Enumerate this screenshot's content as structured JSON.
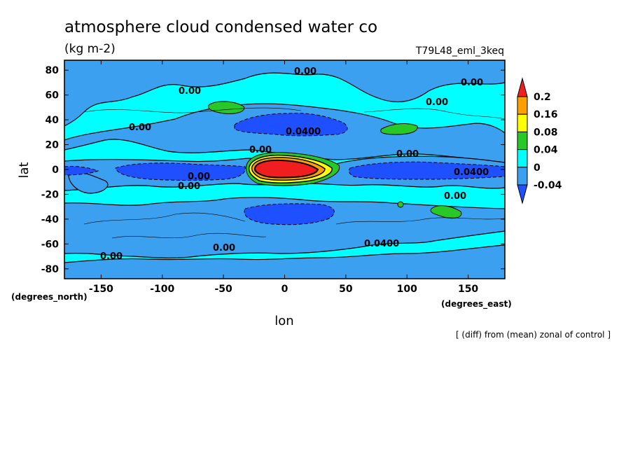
{
  "chart_data": {
    "type": "heatmap",
    "title": "atmosphere cloud condensed water co",
    "subtitle": "(kg m-2)",
    "run_label": "T79L48_eml_3keq",
    "xlabel": "lon",
    "ylabel": "lat",
    "x_units": "(degrees_east)",
    "y_units": "(degrees_north)",
    "footnote": "[ (diff) from (mean) zonal of control ]",
    "xlim": [
      -180,
      180
    ],
    "ylim": [
      -88,
      88
    ],
    "x_ticks": [
      "-150",
      "-100",
      "-50",
      "0",
      "50",
      "100",
      "150"
    ],
    "x_tick_values": [
      -150,
      -100,
      -50,
      0,
      50,
      100,
      150
    ],
    "y_ticks": [
      "80",
      "60",
      "40",
      "20",
      "0",
      "-20",
      "-40",
      "-60",
      "-80"
    ],
    "y_tick_values": [
      80,
      60,
      40,
      20,
      0,
      -20,
      -40,
      -60,
      -80
    ],
    "colorbar": {
      "labels": [
        "0.2",
        "0.16",
        "0.08",
        "0.04",
        "0",
        "-0.04"
      ],
      "levels": [
        -0.04,
        0,
        0.04,
        0.08,
        0.16,
        0.2
      ],
      "colors": [
        "#1e50ff",
        "#3ca0f0",
        "#00ffff",
        "#28c828",
        "#ffff00",
        "#ffa000",
        "#f01e1e"
      ]
    },
    "contour_labels": [
      "0.00",
      "0.0400",
      "0.00",
      "0.0400",
      "0.0400",
      "0.00",
      "0.00",
      "0.00",
      "0.00",
      "0.00",
      "0.00",
      "0.00",
      "0.00",
      "0.00"
    ],
    "background_level": 0.0,
    "features": [
      {
        "name": "equatorial-west-band",
        "lon": [
          -135,
          -40
        ],
        "lat": [
          -4,
          6
        ],
        "value": -0.05
      },
      {
        "name": "equatorial-east-band",
        "lon": [
          55,
          170
        ],
        "lat": [
          -6,
          6
        ],
        "value": -0.05
      },
      {
        "name": "nh-midlat-band",
        "lon": [
          -40,
          45
        ],
        "lat": [
          28,
          40
        ],
        "value": -0.05
      },
      {
        "name": "sh-midlat-band",
        "lon": [
          -35,
          40
        ],
        "lat": [
          -44,
          -30
        ],
        "value": -0.05
      },
      {
        "name": "african-maximum",
        "lon": [
          -30,
          40
        ],
        "lat": [
          -8,
          12
        ],
        "value": 0.22
      },
      {
        "name": "nh-green-patch-west",
        "lon": [
          -60,
          -30
        ],
        "lat": [
          50,
          56
        ],
        "value": 0.05
      },
      {
        "name": "nh-green-patch-east",
        "lon": [
          80,
          100
        ],
        "lat": [
          20,
          33
        ],
        "value": 0.05
      },
      {
        "name": "sh-green-patch",
        "lon": [
          120,
          145
        ],
        "lat": [
          -40,
          -31
        ],
        "value": 0.05
      }
    ]
  }
}
